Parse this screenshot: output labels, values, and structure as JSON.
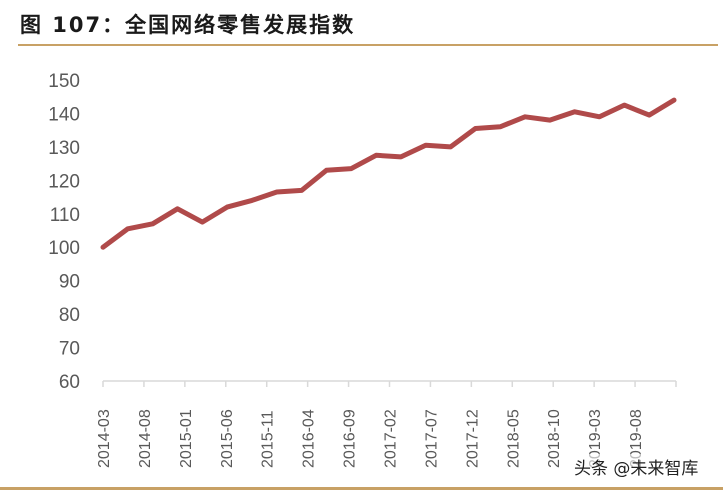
{
  "title": "图 107：全国网络零售发展指数",
  "watermark": "头条 @未来智库",
  "colors": {
    "line": "#b04a4a",
    "rule": "#c8a165",
    "axis": "#d9d9d9",
    "tick_text": "#595959"
  },
  "chart_data": {
    "type": "line",
    "title": "全国网络零售发展指数",
    "xlabel": "",
    "ylabel": "",
    "ylim": [
      60,
      150
    ],
    "yticks": [
      60,
      70,
      80,
      90,
      100,
      110,
      120,
      130,
      140,
      150
    ],
    "xtick_labels": [
      "2014-03",
      "2014-08",
      "2015-01",
      "2015-06",
      "2015-11",
      "2016-04",
      "2016-09",
      "2017-02",
      "2017-07",
      "2017-12",
      "2018-05",
      "2018-10",
      "2019-03",
      "2019-08"
    ],
    "grid": false,
    "legend": null,
    "series": [
      {
        "name": "全国网络零售发展指数",
        "values": [
          100,
          105.5,
          107,
          111.5,
          107.5,
          112,
          114,
          116.5,
          117,
          123,
          123.5,
          127.5,
          127,
          130.5,
          130,
          135.5,
          136,
          139,
          138,
          140.5,
          139,
          142.5,
          139.5,
          144
        ]
      }
    ]
  }
}
